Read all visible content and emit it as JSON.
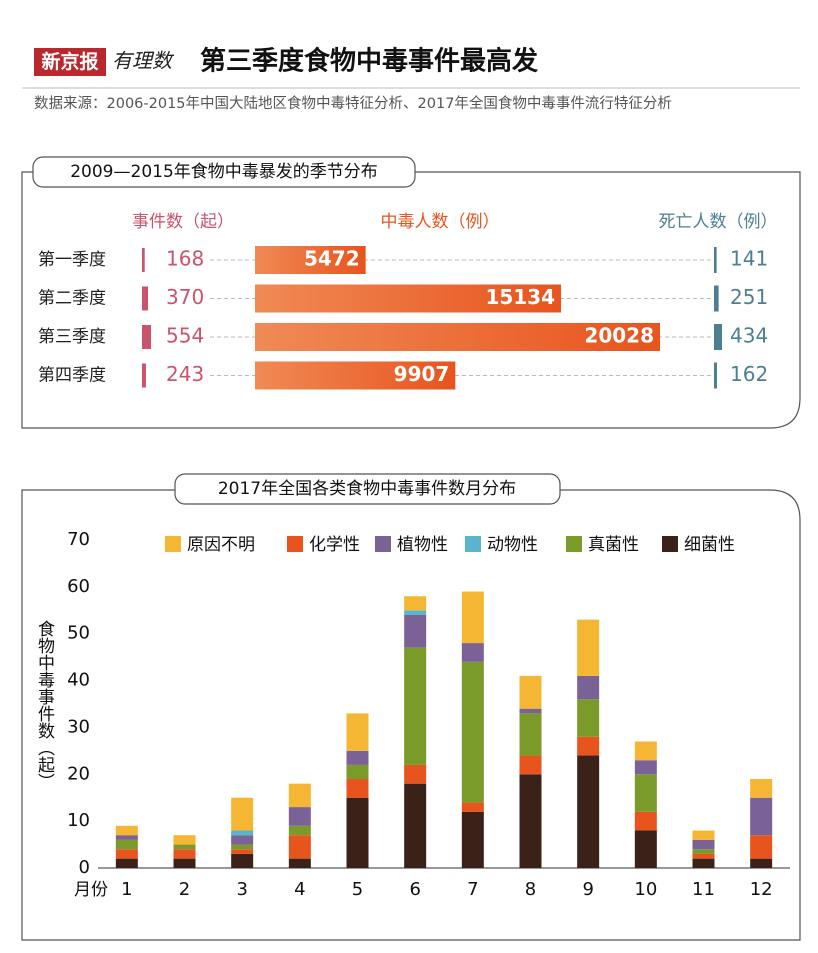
{
  "header": {
    "brand": "新京报",
    "column": "有理数",
    "title": "第三季度食物中毒事件最高发",
    "source": "数据来源：2006-2015年中国大陆地区食物中毒特征分析、2017年全国食物中毒事件流行特征分析"
  },
  "chart_data": [
    {
      "type": "hbar",
      "title": "2009—2015年食物中毒暴发的季节分布",
      "categories": [
        "第一季度",
        "第二季度",
        "第三季度",
        "第四季度"
      ],
      "series": [
        {
          "name": "事件数（起）",
          "color": "#c9546c",
          "values": [
            168,
            370,
            554,
            243
          ]
        },
        {
          "name": "中毒人数（例）",
          "color": "#e8541e",
          "values": [
            5472,
            15134,
            20028,
            9907
          ]
        },
        {
          "name": "死亡人数（例）",
          "color": "#4d7f8e",
          "values": [
            141,
            251,
            434,
            162
          ]
        }
      ]
    },
    {
      "type": "stackedbar",
      "title": "2017年全国各类食物中毒事件数月分布",
      "xlabel": "月份",
      "ylabel": "食物中毒事件数（起）",
      "categories": [
        "1",
        "2",
        "3",
        "4",
        "5",
        "6",
        "7",
        "8",
        "9",
        "10",
        "11",
        "12"
      ],
      "ylim": [
        0,
        70
      ],
      "yticks": [
        0,
        10,
        20,
        30,
        40,
        50,
        60,
        70
      ],
      "series": [
        {
          "name": "原因不明",
          "color": "#f5b733",
          "values": [
            2,
            2,
            7,
            5,
            8,
            3,
            11,
            7,
            12,
            4,
            2,
            4
          ]
        },
        {
          "name": "化学性",
          "color": "#e8541e",
          "values": [
            2,
            2,
            1,
            5,
            4,
            4,
            2,
            4,
            4,
            4,
            1,
            5
          ]
        },
        {
          "name": "植物性",
          "color": "#7a6296",
          "values": [
            1,
            0,
            2,
            4,
            3,
            7,
            4,
            1,
            5,
            3,
            2,
            8
          ]
        },
        {
          "name": "动物性",
          "color": "#5ab4cc",
          "values": [
            0,
            0,
            1,
            0,
            0,
            1,
            0,
            0,
            0,
            0,
            0,
            0
          ]
        },
        {
          "name": "真菌性",
          "color": "#7a9a2a",
          "values": [
            2,
            1,
            1,
            2,
            3,
            25,
            30,
            9,
            8,
            8,
            1,
            0
          ]
        },
        {
          "name": "细菌性",
          "color": "#3a2218",
          "values": [
            2,
            2,
            3,
            2,
            15,
            18,
            12,
            20,
            24,
            8,
            2,
            2
          ]
        }
      ]
    }
  ]
}
